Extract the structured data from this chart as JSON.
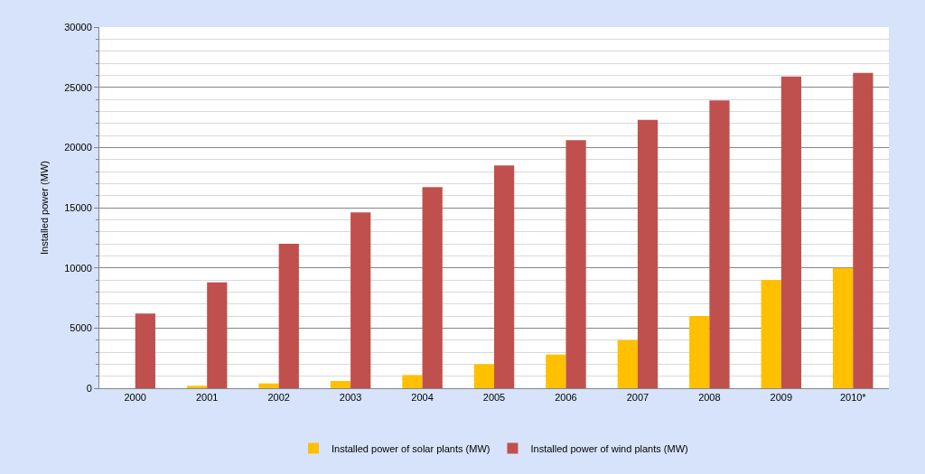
{
  "chart_data": {
    "type": "bar",
    "ylabel": "Installed power (MW)",
    "categories": [
      "2000",
      "2001",
      "2002",
      "2003",
      "2004",
      "2005",
      "2006",
      "2007",
      "2008",
      "2009",
      "2010*"
    ],
    "series": [
      {
        "name": "Installed power of solar plants (MW)",
        "color": "#ffc000",
        "values": [
          0,
          200,
          400,
          600,
          1100,
          2000,
          2800,
          4000,
          6000,
          9000,
          10000
        ]
      },
      {
        "name": "Installed power of wind plants (MW)",
        "color": "#c0504d",
        "values": [
          6200,
          8800,
          12000,
          14600,
          16700,
          18500,
          20600,
          22300,
          23900,
          25900,
          26200
        ]
      }
    ],
    "ylim": [
      0,
      30000
    ],
    "yticks": [
      0,
      {
        "value": 1000,
        "label": null
      },
      {
        "value": 2000,
        "label": null
      },
      {
        "value": 3000,
        "label": null
      },
      {
        "value": 4000,
        "label": null
      },
      5000,
      {
        "value": 6000,
        "label": null
      },
      {
        "value": 7000,
        "label": null
      },
      {
        "value": 8000,
        "label": null
      },
      {
        "value": 9000,
        "label": null
      },
      10000,
      {
        "value": 11000,
        "label": null
      },
      {
        "value": 12000,
        "label": null
      },
      {
        "value": 13000,
        "label": null
      },
      {
        "value": 14000,
        "label": null
      },
      15000,
      {
        "value": 16000,
        "label": null
      },
      {
        "value": 17000,
        "label": null
      },
      {
        "value": 18000,
        "label": null
      },
      {
        "value": 19000,
        "label": null
      },
      20000,
      {
        "value": 21000,
        "label": null
      },
      {
        "value": 22000,
        "label": null
      },
      {
        "value": 23000,
        "label": null
      },
      {
        "value": 24000,
        "label": null
      },
      25000,
      {
        "value": 26000,
        "label": null
      },
      {
        "value": 27000,
        "label": null
      },
      {
        "value": 28000,
        "label": null
      },
      {
        "value": 29000,
        "label": null
      },
      30000
    ],
    "grid": "y",
    "legend": "bottom"
  }
}
